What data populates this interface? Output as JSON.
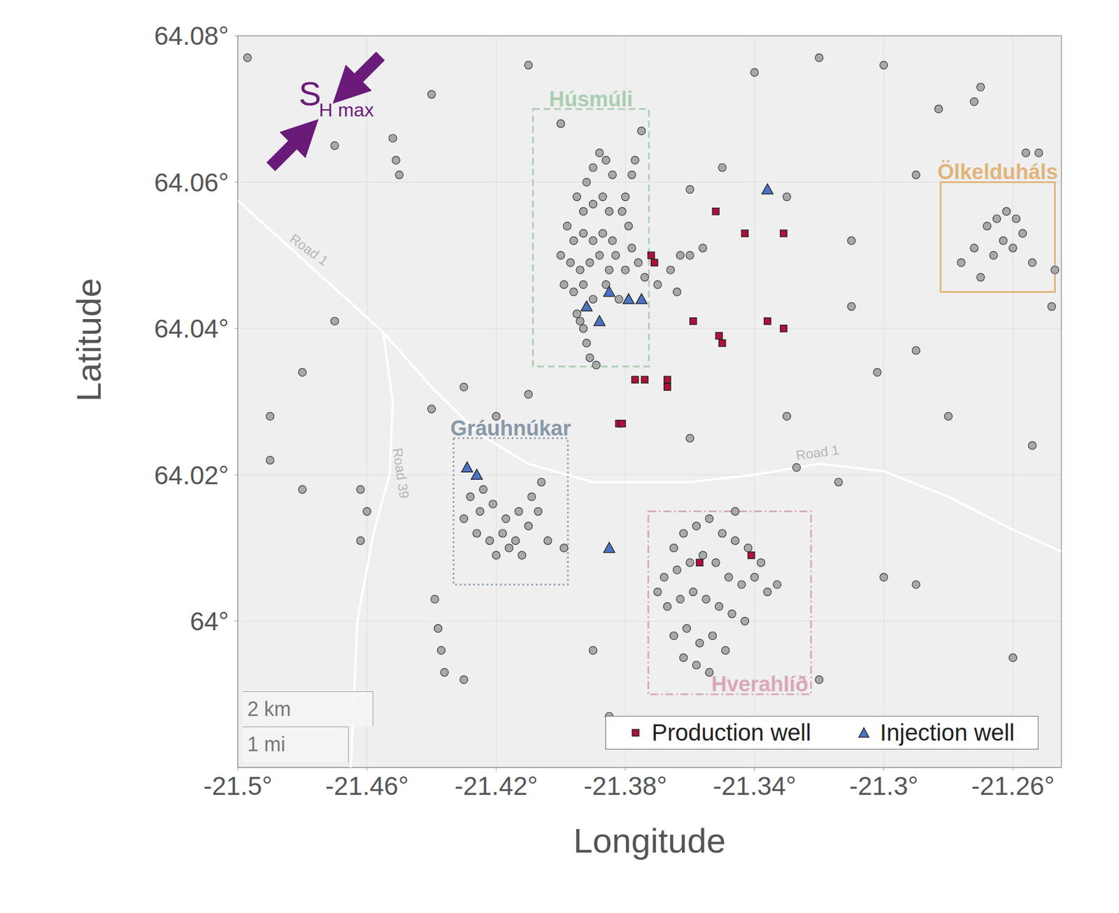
{
  "chart_data": {
    "type": "scatter",
    "x_label": "Longitude",
    "y_label": "Latitude",
    "xlim": [
      -21.5,
      -21.245
    ],
    "ylim": [
      63.98,
      64.08
    ],
    "xticks": [
      {
        "value": -21.5,
        "label": "-21.5°"
      },
      {
        "value": -21.46,
        "label": "-21.46°"
      },
      {
        "value": -21.42,
        "label": "-21.42°"
      },
      {
        "value": -21.38,
        "label": "-21.38°"
      },
      {
        "value": -21.34,
        "label": "-21.34°"
      },
      {
        "value": -21.3,
        "label": "-21.3°"
      },
      {
        "value": -21.26,
        "label": "-21.26°"
      }
    ],
    "yticks": [
      {
        "value": 64,
        "label": "64°"
      },
      {
        "value": 64.02,
        "label": "64.02°"
      },
      {
        "value": 64.04,
        "label": "64.04°"
      },
      {
        "value": 64.06,
        "label": "64.06°"
      },
      {
        "value": 64.08,
        "label": "64.08°"
      }
    ],
    "grid": true,
    "legend": "lower right",
    "series": [
      {
        "color": "#a9a9a9",
        "marker": "circle",
        "values": [
          [
            -21.392,
            64.06
          ],
          [
            -21.39,
            64.062
          ],
          [
            -21.388,
            64.064
          ],
          [
            -21.386,
            64.063
          ],
          [
            -21.384,
            64.061
          ],
          [
            -21.395,
            64.058
          ],
          [
            -21.393,
            64.056
          ],
          [
            -21.39,
            64.057
          ],
          [
            -21.387,
            64.058
          ],
          [
            -21.385,
            64.056
          ],
          [
            -21.398,
            64.054
          ],
          [
            -21.396,
            64.052
          ],
          [
            -21.393,
            64.053
          ],
          [
            -21.39,
            64.052
          ],
          [
            -21.387,
            64.053
          ],
          [
            -21.384,
            64.052
          ],
          [
            -21.4,
            64.05
          ],
          [
            -21.397,
            64.049
          ],
          [
            -21.394,
            64.048
          ],
          [
            -21.391,
            64.049
          ],
          [
            -21.388,
            64.05
          ],
          [
            -21.385,
            64.048
          ],
          [
            -21.399,
            64.046
          ],
          [
            -21.396,
            64.045
          ],
          [
            -21.393,
            64.046
          ],
          [
            -21.39,
            64.044
          ],
          [
            -21.395,
            64.042
          ],
          [
            -21.393,
            64.04
          ],
          [
            -21.392,
            64.038
          ],
          [
            -21.391,
            64.036
          ],
          [
            -21.389,
            64.035
          ],
          [
            -21.394,
            64.041
          ],
          [
            -21.38,
            64.058
          ],
          [
            -21.378,
            64.061
          ],
          [
            -21.377,
            64.063
          ],
          [
            -21.381,
            64.056
          ],
          [
            -21.379,
            64.054
          ],
          [
            -21.383,
            64.05
          ],
          [
            -21.38,
            64.048
          ],
          [
            -21.378,
            64.051
          ],
          [
            -21.376,
            64.049
          ],
          [
            -21.374,
            64.047
          ],
          [
            -21.37,
            64.046
          ],
          [
            -21.366,
            64.048
          ],
          [
            -21.363,
            64.05
          ],
          [
            -21.36,
            64.05
          ],
          [
            -21.356,
            64.051
          ],
          [
            -21.364,
            64.045
          ],
          [
            -21.386,
            64.046
          ],
          [
            -21.382,
            64.044
          ],
          [
            -21.365,
            64.01
          ],
          [
            -21.362,
            64.012
          ],
          [
            -21.358,
            64.013
          ],
          [
            -21.354,
            64.014
          ],
          [
            -21.35,
            64.012
          ],
          [
            -21.346,
            64.011
          ],
          [
            -21.342,
            64.01
          ],
          [
            -21.338,
            64.008
          ],
          [
            -21.368,
            64.006
          ],
          [
            -21.364,
            64.007
          ],
          [
            -21.36,
            64.008
          ],
          [
            -21.356,
            64.009
          ],
          [
            -21.352,
            64.008
          ],
          [
            -21.348,
            64.006
          ],
          [
            -21.344,
            64.005
          ],
          [
            -21.34,
            64.006
          ],
          [
            -21.336,
            64.004
          ],
          [
            -21.367,
            64.002
          ],
          [
            -21.363,
            64.003
          ],
          [
            -21.359,
            64.004
          ],
          [
            -21.355,
            64.003
          ],
          [
            -21.351,
            64.002
          ],
          [
            -21.347,
            64.001
          ],
          [
            -21.343,
            64.0
          ],
          [
            -21.365,
            63.998
          ],
          [
            -21.361,
            63.999
          ],
          [
            -21.357,
            63.997
          ],
          [
            -21.353,
            63.998
          ],
          [
            -21.349,
            63.996
          ],
          [
            -21.362,
            63.995
          ],
          [
            -21.358,
            63.994
          ],
          [
            -21.354,
            63.993
          ],
          [
            -21.37,
            64.004
          ],
          [
            -21.333,
            64.005
          ],
          [
            -21.346,
            64.015
          ],
          [
            -21.428,
            64.017
          ],
          [
            -21.425,
            64.015
          ],
          [
            -21.421,
            64.016
          ],
          [
            -21.417,
            64.014
          ],
          [
            -21.413,
            64.015
          ],
          [
            -21.409,
            64.017
          ],
          [
            -21.406,
            64.019
          ],
          [
            -21.426,
            64.012
          ],
          [
            -21.422,
            64.011
          ],
          [
            -21.418,
            64.012
          ],
          [
            -21.414,
            64.011
          ],
          [
            -21.41,
            64.013
          ],
          [
            -21.407,
            64.015
          ],
          [
            -21.42,
            64.009
          ],
          [
            -21.416,
            64.01
          ],
          [
            -21.412,
            64.009
          ],
          [
            -21.43,
            64.014
          ],
          [
            -21.424,
            64.018
          ],
          [
            -21.404,
            64.011
          ],
          [
            -21.399,
            64.01
          ],
          [
            -21.268,
            64.054
          ],
          [
            -21.265,
            64.055
          ],
          [
            -21.262,
            64.056
          ],
          [
            -21.259,
            64.055
          ],
          [
            -21.263,
            64.052
          ],
          [
            -21.26,
            64.051
          ],
          [
            -21.266,
            64.05
          ],
          [
            -21.272,
            64.051
          ],
          [
            -21.276,
            64.049
          ],
          [
            -21.257,
            64.053
          ],
          [
            -21.254,
            64.049
          ],
          [
            -21.27,
            64.047
          ],
          [
            -21.439,
            64.003
          ],
          [
            -21.438,
            63.999
          ],
          [
            -21.437,
            63.996
          ],
          [
            -21.436,
            63.993
          ],
          [
            -21.452,
            64.066
          ],
          [
            -21.451,
            64.063
          ],
          [
            -21.45,
            64.061
          ],
          [
            -21.462,
            64.018
          ],
          [
            -21.46,
            64.015
          ],
          [
            -21.462,
            64.011
          ],
          [
            -21.272,
            64.071
          ],
          [
            -21.27,
            64.073
          ],
          [
            -21.256,
            64.064
          ],
          [
            -21.252,
            64.064
          ],
          [
            -21.247,
            64.048
          ],
          [
            -21.248,
            64.043
          ],
          [
            -21.497,
            64.077
          ],
          [
            -21.47,
            64.065
          ],
          [
            -21.44,
            64.072
          ],
          [
            -21.41,
            64.076
          ],
          [
            -21.34,
            64.075
          ],
          [
            -21.32,
            64.077
          ],
          [
            -21.3,
            64.076
          ],
          [
            -21.283,
            64.07
          ],
          [
            -21.29,
            64.061
          ],
          [
            -21.31,
            64.052
          ],
          [
            -21.29,
            64.037
          ],
          [
            -21.302,
            64.034
          ],
          [
            -21.28,
            64.028
          ],
          [
            -21.254,
            64.024
          ],
          [
            -21.3,
            64.006
          ],
          [
            -21.29,
            64.005
          ],
          [
            -21.26,
            63.995
          ],
          [
            -21.32,
            63.992
          ],
          [
            -21.33,
            64.028
          ],
          [
            -21.36,
            64.025
          ],
          [
            -21.49,
            64.022
          ],
          [
            -21.48,
            64.018
          ],
          [
            -21.47,
            64.041
          ],
          [
            -21.49,
            64.028
          ],
          [
            -21.44,
            64.029
          ],
          [
            -21.41,
            64.031
          ],
          [
            -21.43,
            63.992
          ],
          [
            -21.385,
            63.987
          ],
          [
            -21.48,
            64.034
          ],
          [
            -21.35,
            64.062
          ],
          [
            -21.36,
            64.059
          ],
          [
            -21.33,
            64.058
          ],
          [
            -21.31,
            64.043
          ],
          [
            -21.4,
            64.068
          ],
          [
            -21.375,
            64.067
          ],
          [
            -21.43,
            64.032
          ],
          [
            -21.42,
            64.028
          ],
          [
            -21.39,
            63.996
          ],
          [
            -21.314,
            64.019
          ],
          [
            -21.327,
            64.021
          ]
        ]
      },
      {
        "name": "Production well",
        "color": "#b0103a",
        "marker": "square",
        "values": [
          [
            -21.352,
            64.056
          ],
          [
            -21.343,
            64.053
          ],
          [
            -21.331,
            64.053
          ],
          [
            -21.372,
            64.05
          ],
          [
            -21.371,
            64.049
          ],
          [
            -21.359,
            64.041
          ],
          [
            -21.351,
            64.039
          ],
          [
            -21.35,
            64.038
          ],
          [
            -21.336,
            64.041
          ],
          [
            -21.331,
            64.04
          ],
          [
            -21.377,
            64.033
          ],
          [
            -21.374,
            64.033
          ],
          [
            -21.367,
            64.033
          ],
          [
            -21.367,
            64.032
          ],
          [
            -21.382,
            64.027
          ],
          [
            -21.381,
            64.027
          ],
          [
            -21.357,
            64.008
          ],
          [
            -21.341,
            64.009
          ]
        ]
      },
      {
        "name": "Injection well",
        "color": "#4a74c4",
        "marker": "triangle",
        "values": [
          [
            -21.336,
            64.059
          ],
          [
            -21.392,
            64.043
          ],
          [
            -21.388,
            64.041
          ],
          [
            -21.385,
            64.045
          ],
          [
            -21.379,
            64.044
          ],
          [
            -21.375,
            64.044
          ],
          [
            -21.429,
            64.021
          ],
          [
            -21.426,
            64.02
          ],
          [
            -21.385,
            64.01
          ]
        ]
      }
    ],
    "regions": [
      {
        "label": "Húsmúli",
        "x": [
          -21.4086,
          -21.3727
        ],
        "y": [
          64.0348,
          64.07
        ],
        "color": "#a8cfb0",
        "line_style": "dashed"
      },
      {
        "label": "Gráuhnúkar",
        "x": [
          -21.4332,
          -21.3978
        ],
        "y": [
          64.005,
          64.025
        ],
        "color": "#8898a8",
        "line_style": "dotted"
      },
      {
        "label": "Hverahlíð",
        "x": [
          -21.3729,
          -21.3225
        ],
        "y": [
          63.99,
          64.015
        ],
        "color": "#d9a8b8",
        "line_style": "dashdot"
      },
      {
        "label": "Ölkelduháls",
        "x": [
          -21.2824,
          -21.247
        ],
        "y": [
          64.045,
          64.06
        ],
        "color": "#e0b47a",
        "line_style": "solid"
      }
    ],
    "roads": [
      {
        "label": "Road 1",
        "values": [
          [
            -21.5,
            64.0575
          ],
          [
            -21.48,
            64.0495
          ],
          [
            -21.465,
            64.0435
          ],
          [
            -21.455,
            64.0395
          ],
          [
            -21.44,
            64.032
          ],
          [
            -21.425,
            64.0255
          ],
          [
            -21.41,
            64.0215
          ],
          [
            -21.39,
            64.019
          ]
        ]
      },
      {
        "label": "Road 1",
        "values": [
          [
            -21.39,
            64.019
          ],
          [
            -21.36,
            64.019
          ],
          [
            -21.34,
            64.02
          ],
          [
            -21.32,
            64.0215
          ],
          [
            -21.3,
            64.0205
          ],
          [
            -21.28,
            64.017
          ],
          [
            -21.26,
            64.0125
          ],
          [
            -21.245,
            64.0095
          ]
        ]
      },
      {
        "label": "Road 39",
        "values": [
          [
            -21.455,
            64.0395
          ],
          [
            -21.452,
            64.03
          ],
          [
            -21.453,
            64.02
          ],
          [
            -21.458,
            64.012
          ],
          [
            -21.463,
            64.0
          ],
          [
            -21.465,
            63.98
          ]
        ]
      }
    ],
    "stress": {
      "label": "S",
      "subscript": "H max",
      "color": "#6a1b7a"
    },
    "scale_bar": [
      "2 km",
      "1 mi"
    ]
  }
}
